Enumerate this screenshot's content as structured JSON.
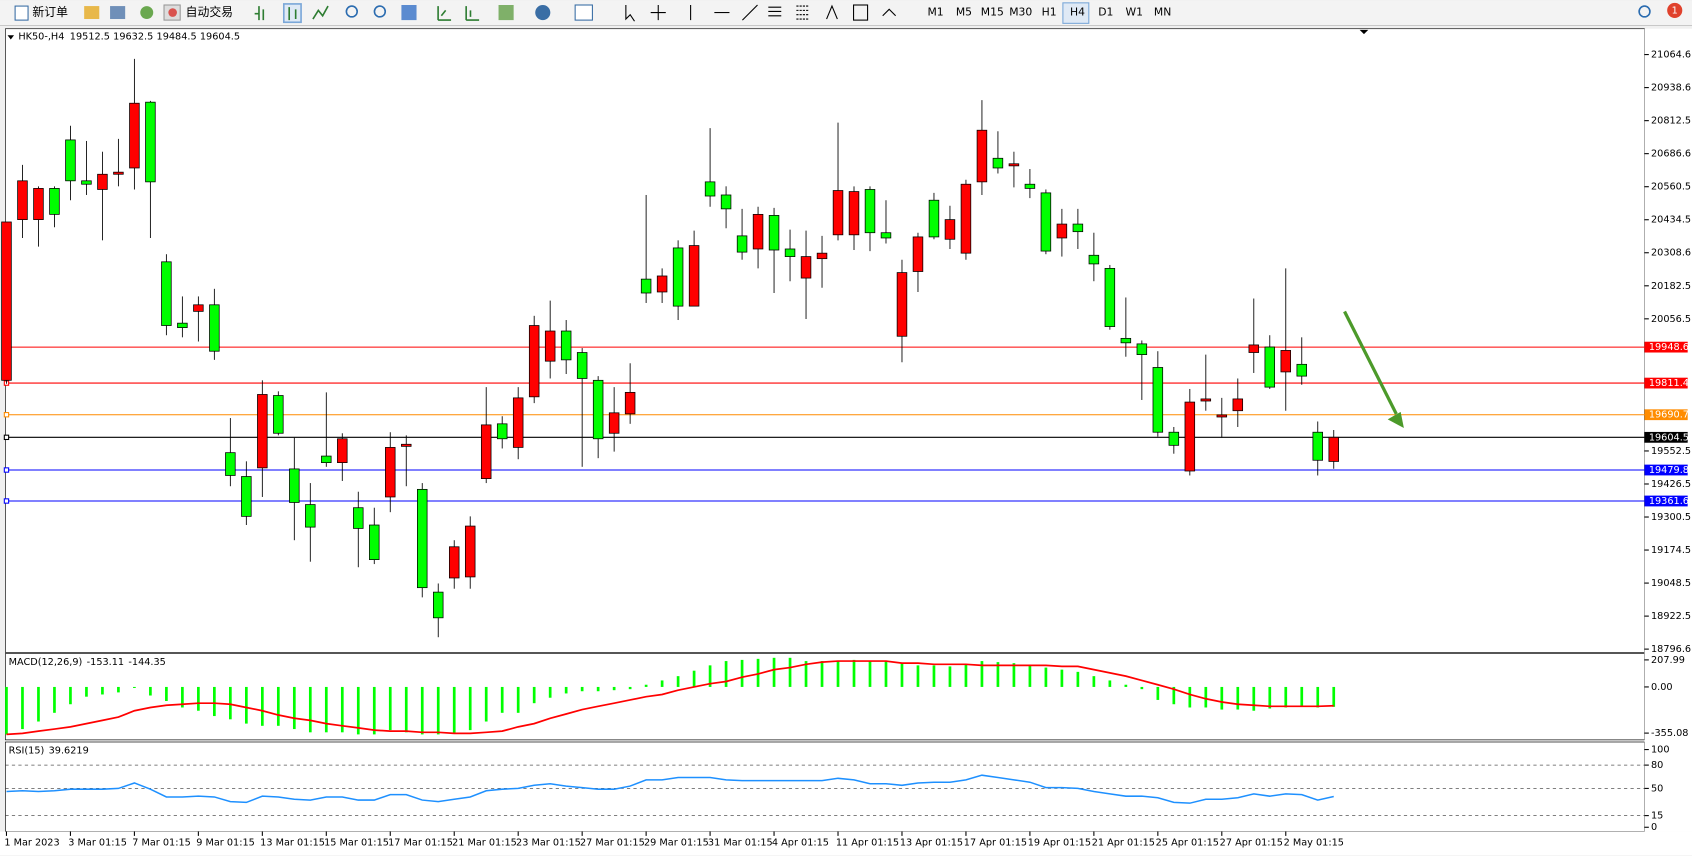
{
  "toolbar": {
    "new_order": "新订单",
    "auto_trading": "自动交易",
    "timeframes": [
      "M1",
      "M5",
      "M15",
      "M30",
      "H1",
      "H4",
      "D1",
      "W1",
      "MN"
    ],
    "notifications": 1
  },
  "chart_data": [
    {
      "type": "candlestick",
      "title": "HK50-,H4",
      "categories": [
        "1 Mar 2023",
        null,
        null,
        null,
        "3 Mar 01:15",
        null,
        null,
        null,
        "7 Mar 01:15",
        null,
        null,
        null,
        "9 Mar 01:15",
        null,
        null,
        null,
        "13 Mar 01:15",
        null,
        null,
        null,
        "15 Mar 01:15",
        null,
        null,
        null,
        "17 Mar 01:15",
        null,
        null,
        null,
        "21 Mar 01:15",
        null,
        null,
        null,
        "23 Mar 01:15",
        null,
        null,
        null,
        "27 Mar 01:15",
        null,
        null,
        null,
        "29 Mar 01:15",
        null,
        null,
        null,
        "31 Mar 01:15",
        null,
        null,
        null,
        "4 Apr 01:15",
        null,
        null,
        null,
        "11 Apr 01:15",
        null,
        null,
        null,
        "13 Apr 01:15",
        null,
        null,
        null,
        "17 Apr 01:15",
        null,
        null,
        null,
        "19 Apr 01:15",
        null,
        null,
        null,
        "21 Apr 01:15",
        null,
        null,
        null,
        "25 Apr 01:15",
        null,
        null,
        null,
        "27 Apr 01:15",
        null,
        null,
        null,
        "2 May 01:15",
        null,
        null,
        null
      ],
      "open": [
        19822,
        20435,
        20435,
        20554,
        20739,
        20583,
        20550,
        20608,
        20632,
        20883,
        20274,
        20040,
        20085,
        20110,
        19546,
        19455,
        19488,
        19764,
        19484,
        19348,
        19533,
        19508,
        19336,
        19270,
        19377,
        19570,
        19406,
        19014,
        19068,
        19072,
        19447,
        19656,
        19566,
        19759,
        19895,
        20010,
        19928,
        19822,
        19620,
        19694,
        20208,
        20159,
        20327,
        20105,
        20579,
        20529,
        20373,
        20323,
        20451,
        20323,
        20212,
        20286,
        20377,
        20377,
        20550,
        20385,
        19990,
        20237,
        20509,
        20360,
        20307,
        20579,
        20669,
        20640,
        20570,
        20537,
        20365,
        20418,
        20299,
        20249,
        19982,
        19961,
        19871,
        19624,
        19476,
        19743,
        19682,
        19706,
        19928,
        19949,
        19854,
        19883,
        19624,
        19512.5
      ],
      "high": [
        20426,
        20644,
        20562,
        20562,
        20793,
        20735,
        20694,
        20743,
        21048,
        20888,
        20303,
        20142,
        20142,
        20171,
        19678,
        19513,
        19822,
        19780,
        19603,
        19430,
        19776,
        19620,
        19397,
        19336,
        19624,
        19612,
        19430,
        19047,
        19212,
        19303,
        19796,
        19685,
        19796,
        20068,
        20126,
        20052,
        19945,
        19838,
        19796,
        19887,
        20529,
        20249,
        20356,
        20393,
        20784,
        20562,
        20476,
        20484,
        20480,
        20397,
        20393,
        20373,
        20805,
        20562,
        20562,
        20509,
        20282,
        20385,
        20537,
        20488,
        20587,
        20891,
        20772,
        20694,
        20628,
        20550,
        20476,
        20476,
        20385,
        20262,
        20138,
        19974,
        19933,
        19644,
        19789,
        19920,
        19755,
        19829,
        20134,
        19994,
        20249,
        19986,
        19665,
        19632.5
      ],
      "low": [
        19809,
        20365,
        20332,
        20406,
        20509,
        20529,
        20356,
        20562,
        20550,
        20365,
        19994,
        19986,
        19970,
        19900,
        19418,
        19270,
        19377,
        19612,
        19212,
        19130,
        19492,
        19438,
        19109,
        19121,
        19319,
        19418,
        18994,
        18842,
        19027,
        19027,
        19430,
        19562,
        19521,
        19735,
        19829,
        19846,
        19492,
        19525,
        19550,
        19656,
        20117,
        20117,
        20052,
        20105,
        20484,
        20402,
        20282,
        20249,
        20155,
        20200,
        20056,
        20175,
        20356,
        20319,
        20315,
        20344,
        19891,
        20159,
        20360,
        20323,
        20282,
        20529,
        20611,
        20558,
        20517,
        20303,
        20294,
        20323,
        20200,
        20015,
        19912,
        19747,
        19607,
        19542,
        19459,
        19706,
        19603,
        19644,
        19850,
        19789,
        19706,
        19805,
        19459,
        19484.5
      ],
      "close": [
        20426,
        20583,
        20554,
        20455,
        20583,
        20570,
        20608,
        20616,
        20879,
        20579,
        20031,
        20023,
        20110,
        19933,
        19459,
        19303,
        19768,
        19620,
        19356,
        19262,
        19508,
        19599,
        19257,
        19138,
        19566,
        19578,
        19031,
        18916,
        19187,
        19266,
        19652,
        19599,
        19755,
        20031,
        20010,
        19900,
        19829,
        19599,
        19698,
        19776,
        20155,
        20220,
        20105,
        20336,
        20525,
        20476,
        20311,
        20455,
        20319,
        20294,
        20294,
        20307,
        20546,
        20542,
        20385,
        20365,
        20233,
        20369,
        20369,
        20435,
        20570,
        20776,
        20632,
        20648,
        20554,
        20315,
        20418,
        20389,
        20266,
        20027,
        19965,
        19920,
        19624,
        19574,
        19739,
        19751,
        19690,
        19751,
        19957,
        19796,
        19936,
        19838,
        19517,
        19604.5
      ],
      "up_color": "#ff0000",
      "down_color": "#00ff00",
      "ylim": [
        18788,
        21159
      ],
      "yticks": [
        21064.6,
        20938.6,
        20812.5,
        20686.6,
        20560.5,
        20434.5,
        20308.6,
        20182.5,
        20056.5,
        19552.5,
        19426.5,
        19300.5,
        19174.5,
        19048.5,
        18922.5,
        18796.6
      ],
      "levels": [
        {
          "value": 19948.6,
          "color": "#ff0000"
        },
        {
          "value": 19811.4,
          "color": "#ff0000"
        },
        {
          "value": 19690.7,
          "color": "#ff8c00"
        },
        {
          "value": 19604.5,
          "color": "#000000"
        },
        {
          "value": 19479.8,
          "color": "#0000ff"
        },
        {
          "value": 19361.6,
          "color": "#0000ff"
        }
      ]
    },
    {
      "type": "macd",
      "title": "MACD(12,26,9)",
      "histogram": [
        -365,
        -324,
        -266,
        -199,
        -133,
        -75,
        -58,
        -42,
        -8,
        -66,
        -108,
        -158,
        -183,
        -224,
        -249,
        -282,
        -299,
        -299,
        -324,
        -349,
        -349,
        -349,
        -365,
        -365,
        -332,
        -349,
        -365,
        -365,
        -357,
        -332,
        -266,
        -199,
        -199,
        -125,
        -83,
        -50,
        -33,
        -33,
        -25,
        -17,
        17,
        50,
        83,
        125,
        166,
        199,
        208,
        216,
        224,
        224,
        199,
        199,
        199,
        208,
        199,
        199,
        183,
        166,
        166,
        158,
        174,
        199,
        191,
        183,
        166,
        149,
        133,
        116,
        83,
        50,
        17,
        -17,
        -100,
        -133,
        -158,
        -158,
        -174,
        -174,
        -183,
        -166,
        -158,
        -149,
        -158,
        -153.11
      ],
      "histogram_color": "#00ff00",
      "signal": [
        -365,
        -357,
        -340,
        -324,
        -307,
        -282,
        -257,
        -232,
        -183,
        -158,
        -141,
        -133,
        -125,
        -125,
        -133,
        -158,
        -183,
        -216,
        -241,
        -257,
        -282,
        -299,
        -315,
        -332,
        -340,
        -340,
        -349,
        -349,
        -357,
        -357,
        -349,
        -340,
        -307,
        -282,
        -241,
        -208,
        -174,
        -149,
        -125,
        -100,
        -75,
        -58,
        -25,
        0,
        25,
        42,
        75,
        100,
        133,
        149,
        174,
        191,
        199,
        199,
        199,
        199,
        183,
        183,
        174,
        174,
        174,
        166,
        166,
        166,
        166,
        166,
        158,
        158,
        133,
        108,
        83,
        50,
        17,
        -17,
        -58,
        -91,
        -116,
        -133,
        -141,
        -149,
        -149,
        -149,
        -149,
        -144.35
      ],
      "signal_color": "#ff0000",
      "ylim": [
        -407,
        257
      ],
      "yticks": [
        207.99,
        {
          "value": 0,
          "label": "0.00"
        },
        -355.08
      ]
    },
    {
      "type": "line",
      "title": "RSI(15)",
      "values": [
        46,
        47,
        46,
        47,
        49,
        49,
        49,
        50,
        57,
        49,
        39,
        39,
        40,
        39,
        33,
        32,
        40,
        39,
        36,
        35,
        39,
        39,
        35,
        35,
        42,
        42,
        35,
        33,
        36,
        39,
        47,
        49,
        50,
        54,
        56,
        53,
        51,
        49,
        49,
        53,
        61,
        61,
        64,
        64,
        64,
        61,
        60,
        60,
        60,
        60,
        60,
        60,
        63,
        61,
        56,
        56,
        54,
        57,
        58,
        58,
        61,
        67,
        64,
        61,
        58,
        51,
        51,
        50,
        46,
        43,
        40,
        40,
        38,
        32,
        31,
        36,
        36,
        38,
        43,
        40,
        43,
        42,
        35,
        39.6219
      ],
      "color": "#1e90ff",
      "ylim": [
        0,
        100
      ],
      "yticks": [
        100,
        80,
        50,
        15,
        0
      ]
    }
  ]
}
